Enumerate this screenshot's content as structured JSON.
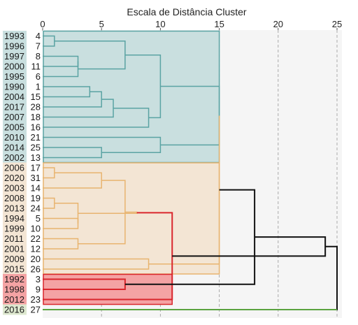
{
  "chart_data": {
    "type": "dendrogram",
    "xlabel": "Escala de Distância Cluster",
    "xlim": [
      0,
      25
    ],
    "xticks": [
      0,
      5,
      10,
      15,
      20,
      25
    ],
    "grid": "vertical dashed",
    "leaves": [
      {
        "year": "1993",
        "case": "4",
        "group": "teal"
      },
      {
        "year": "1996",
        "case": "7",
        "group": "teal"
      },
      {
        "year": "1997",
        "case": "8",
        "group": "teal"
      },
      {
        "year": "2000",
        "case": "11",
        "group": "teal"
      },
      {
        "year": "1995",
        "case": "6",
        "group": "teal"
      },
      {
        "year": "1990",
        "case": "1",
        "group": "teal"
      },
      {
        "year": "2004",
        "case": "15",
        "group": "teal"
      },
      {
        "year": "2017",
        "case": "28",
        "group": "teal"
      },
      {
        "year": "2007",
        "case": "18",
        "group": "teal"
      },
      {
        "year": "2005",
        "case": "16",
        "group": "teal"
      },
      {
        "year": "2010",
        "case": "21",
        "group": "teal"
      },
      {
        "year": "2014",
        "case": "25",
        "group": "teal"
      },
      {
        "year": "2002",
        "case": "13",
        "group": "teal"
      },
      {
        "year": "2006",
        "case": "17",
        "group": "orange"
      },
      {
        "year": "2020",
        "case": "31",
        "group": "orange"
      },
      {
        "year": "2003",
        "case": "14",
        "group": "orange"
      },
      {
        "year": "2008",
        "case": "19",
        "group": "orange"
      },
      {
        "year": "2013",
        "case": "24",
        "group": "orange"
      },
      {
        "year": "1994",
        "case": "5",
        "group": "orange"
      },
      {
        "year": "1999",
        "case": "10",
        "group": "orange"
      },
      {
        "year": "2011",
        "case": "22",
        "group": "orange"
      },
      {
        "year": "2001",
        "case": "12",
        "group": "orange"
      },
      {
        "year": "2009",
        "case": "20",
        "group": "orange"
      },
      {
        "year": "2015",
        "case": "26",
        "group": "orange"
      },
      {
        "year": "1992",
        "case": "3",
        "group": "red"
      },
      {
        "year": "1998",
        "case": "9",
        "group": "red"
      },
      {
        "year": "2012",
        "case": "23",
        "group": "red"
      },
      {
        "year": "2016",
        "case": "27",
        "group": "green"
      }
    ],
    "merges": [
      {
        "a": 0,
        "b": 1,
        "height": 1,
        "group": "teal"
      },
      {
        "a": 2,
        "b": 3,
        "height": 3,
        "group": "teal"
      },
      {
        "a": 5,
        "b": 6,
        "height": 4,
        "group": "teal"
      },
      {
        "a": 30,
        "b": 7,
        "height": 5,
        "group": "teal"
      },
      {
        "a": 11,
        "b": 12,
        "height": 5,
        "group": "teal"
      },
      {
        "a": 29,
        "b": 4,
        "height": 3,
        "group": "teal"
      },
      {
        "a": 31,
        "b": 8,
        "height": 6,
        "group": "teal"
      },
      {
        "a": 28,
        "b": 33,
        "height": 7,
        "group": "teal"
      },
      {
        "a": 34,
        "b": 9,
        "height": 9,
        "group": "teal"
      },
      {
        "a": 35,
        "b": 36,
        "height": 10,
        "group": "teal"
      },
      {
        "a": 10,
        "b": 32,
        "height": 10,
        "group": "teal"
      },
      {
        "a": 37,
        "b": 38,
        "height": 15,
        "group": "teal"
      },
      {
        "a": 13,
        "b": 14,
        "height": 1,
        "group": "orange"
      },
      {
        "a": 16,
        "b": 17,
        "height": 1,
        "group": "orange"
      },
      {
        "a": 40,
        "b": 15,
        "height": 5,
        "group": "orange"
      },
      {
        "a": 18,
        "b": 19,
        "height": 3,
        "group": "orange"
      },
      {
        "a": 20,
        "b": 21,
        "height": 3,
        "group": "orange"
      },
      {
        "a": 41,
        "b": 43,
        "height": 3,
        "group": "orange"
      },
      {
        "a": 44,
        "b": 42,
        "height": 7,
        "group": "orange"
      },
      {
        "a": 22,
        "b": 23,
        "height": 9,
        "group": "orange"
      },
      {
        "a": 45,
        "b": 46,
        "height": 8,
        "group": "orange"
      },
      {
        "a": 39,
        "b": 47,
        "height": 15,
        "group": "orange"
      },
      {
        "a": 24,
        "b": 25,
        "height": 7,
        "group": "red"
      },
      {
        "a": 48,
        "b": 26,
        "height": 11,
        "group": "red"
      },
      {
        "a": 49,
        "b": 50,
        "height": 18,
        "group": "black"
      },
      {
        "a": 51,
        "b": 52,
        "height": 24,
        "group": "black"
      },
      {
        "a": 53,
        "b": 27,
        "height": 25,
        "group": "black"
      }
    ],
    "clusters": [
      {
        "name": "teal",
        "first": 0,
        "last": 12,
        "height": 15
      },
      {
        "name": "orange",
        "first": 13,
        "last": 23,
        "height": 15
      },
      {
        "name": "red",
        "first": 24,
        "last": 26,
        "height": 11
      }
    ],
    "colors": {
      "teal_fill": "#c9dfdf",
      "teal_line": "#5aa3a3",
      "orange_fill": "#f3e5d4",
      "orange_line": "#e8b46f",
      "red_fill": "#f4a3a4",
      "red_line": "#d9262c",
      "green_line": "#5aa33f",
      "black_line": "#111111",
      "plot_bg": "#f5f5f5",
      "label_teal": "#c9dfdf",
      "label_orange": "#f3e5d4",
      "label_red": "#f4a3a4",
      "label_green": "#dde8cf",
      "grid": "#aaaaaa"
    }
  }
}
